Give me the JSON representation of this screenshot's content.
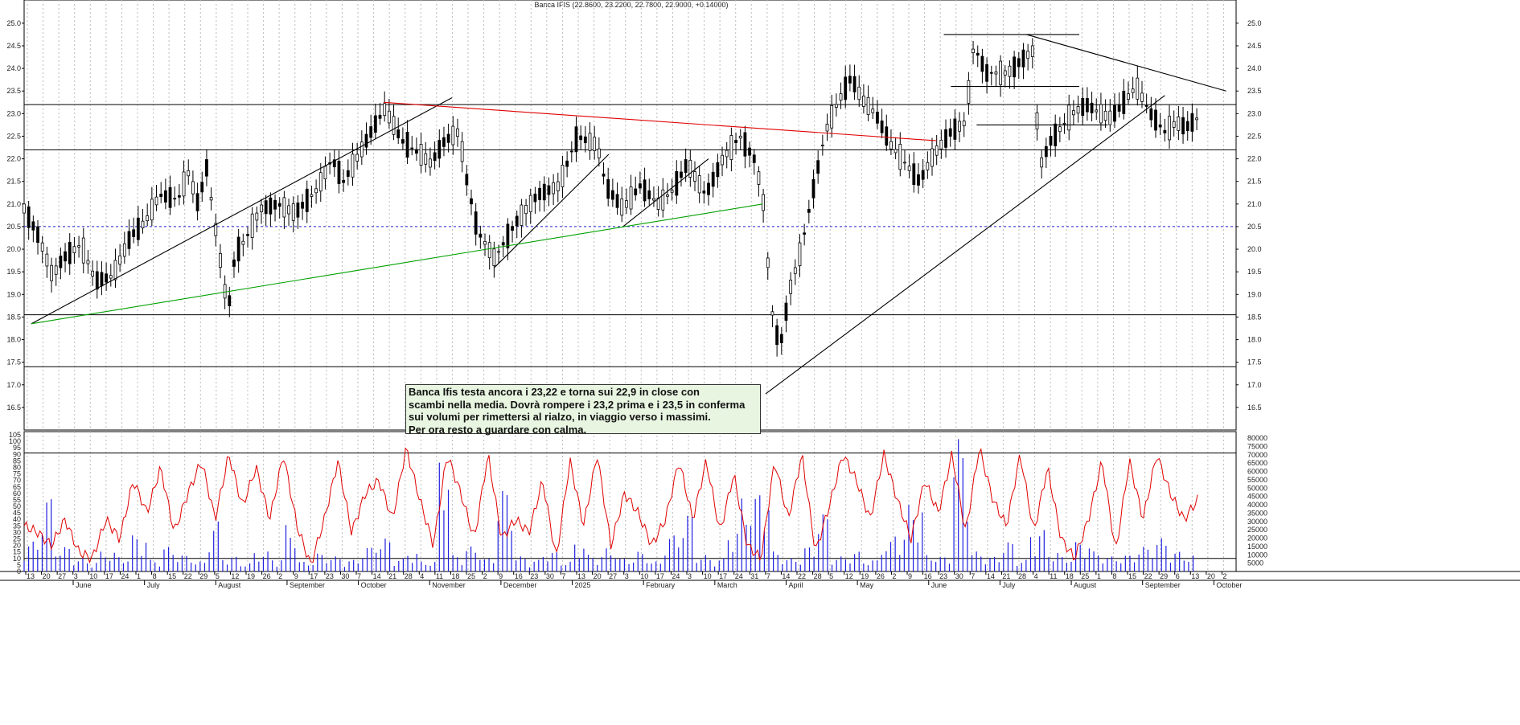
{
  "chart_data": [
    {
      "type": "candlestick",
      "title": "Banca IFIS (22.8600, 23.2200, 22.7800, 22.9000, +0.14000)",
      "ylim": [
        16.0,
        25.3
      ],
      "y_ticks": [
        "25.0",
        "24.5",
        "24.0",
        "23.5",
        "23.0",
        "22.5",
        "22.0",
        "21.5",
        "21.0",
        "20.5",
        "20.0",
        "19.5",
        "19.0",
        "18.5",
        "18.0",
        "17.5",
        "17.0",
        "16.5"
      ],
      "grid": "vertical dotted",
      "horizontal_levels": [
        23.2,
        22.2,
        18.55,
        17.4
      ],
      "dotted_level": 20.5,
      "x_day_labels": [
        "13",
        "20",
        "27",
        "3",
        "10",
        "17",
        "24",
        "1",
        "8",
        "15",
        "22",
        "29",
        "5",
        "12",
        "19",
        "26",
        "2",
        "9",
        "17",
        "23",
        "30",
        "7",
        "14",
        "21",
        "28",
        "4",
        "11",
        "18",
        "25",
        "2",
        "9",
        "16",
        "23",
        "30",
        "7",
        "13",
        "20",
        "27",
        "3",
        "10",
        "17",
        "24",
        "3",
        "10",
        "17",
        "24",
        "31",
        "7",
        "14",
        "22",
        "28",
        "5",
        "12",
        "19",
        "26",
        "2",
        "9",
        "16",
        "23",
        "30",
        "7",
        "14",
        "21",
        "28",
        "4",
        "11",
        "18",
        "25",
        "1",
        "8",
        "15",
        "22",
        "29",
        "6",
        "13",
        "20",
        "2"
      ],
      "x_month_labels": [
        "June",
        "July",
        "August",
        "September",
        "October",
        "November",
        "December",
        "2025",
        "February",
        "March",
        "April",
        "May",
        "June",
        "July",
        "August",
        "September",
        "October"
      ],
      "price_path": [
        [
          0,
          20.9
        ],
        [
          10,
          20.3
        ],
        [
          20,
          19.4
        ],
        [
          27,
          19.8
        ],
        [
          40,
          20.1
        ],
        [
          50,
          19.3
        ],
        [
          62,
          19.4
        ],
        [
          75,
          20.3
        ],
        [
          85,
          20.6
        ],
        [
          95,
          21.2
        ],
        [
          108,
          21.1
        ],
        [
          115,
          21.7
        ],
        [
          122,
          21.0
        ],
        [
          128,
          21.8
        ],
        [
          143,
          18.6
        ],
        [
          148,
          19.9
        ],
        [
          155,
          20.2
        ],
        [
          166,
          20.9
        ],
        [
          178,
          21.0
        ],
        [
          190,
          20.8
        ],
        [
          205,
          21.3
        ],
        [
          216,
          22.0
        ],
        [
          224,
          21.5
        ],
        [
          235,
          22.1
        ],
        [
          245,
          22.7
        ],
        [
          253,
          23.1
        ],
        [
          265,
          22.4
        ],
        [
          278,
          22.1
        ],
        [
          285,
          21.9
        ],
        [
          295,
          22.4
        ],
        [
          305,
          22.6
        ],
        [
          310,
          21.6
        ],
        [
          318,
          20.4
        ],
        [
          330,
          19.8
        ],
        [
          345,
          20.6
        ],
        [
          360,
          21.2
        ],
        [
          375,
          21.4
        ],
        [
          388,
          22.5
        ],
        [
          402,
          22.3
        ],
        [
          408,
          21.4
        ],
        [
          420,
          20.9
        ],
        [
          432,
          21.4
        ],
        [
          445,
          21.0
        ],
        [
          455,
          21.3
        ],
        [
          465,
          21.9
        ],
        [
          478,
          21.2
        ],
        [
          490,
          22.0
        ],
        [
          502,
          22.5
        ],
        [
          512,
          22.0
        ],
        [
          518,
          21.2
        ],
        [
          524,
          18.7
        ],
        [
          530,
          17.8
        ],
        [
          537,
          19.1
        ],
        [
          545,
          20.0
        ],
        [
          552,
          21.1
        ],
        [
          562,
          22.6
        ],
        [
          570,
          23.2
        ],
        [
          580,
          23.8
        ],
        [
          588,
          23.3
        ],
        [
          597,
          23.0
        ],
        [
          608,
          22.3
        ],
        [
          618,
          21.9
        ],
        [
          628,
          21.5
        ],
        [
          638,
          22.1
        ],
        [
          650,
          22.6
        ],
        [
          660,
          22.8
        ],
        [
          666,
          24.5
        ],
        [
          675,
          23.9
        ],
        [
          690,
          23.9
        ],
        [
          700,
          24.2
        ],
        [
          708,
          24.4
        ],
        [
          712,
          21.8
        ],
        [
          720,
          22.4
        ],
        [
          735,
          23.0
        ],
        [
          745,
          23.2
        ],
        [
          755,
          23.0
        ],
        [
          762,
          22.9
        ],
        [
          770,
          23.2
        ],
        [
          780,
          23.6
        ],
        [
          790,
          23.0
        ],
        [
          800,
          22.6
        ],
        [
          808,
          22.8
        ],
        [
          815,
          22.7
        ],
        [
          823,
          22.9
        ]
      ],
      "trend_lines": [
        {
          "color": "#000000",
          "from": [
            5,
            18.35
          ],
          "to": [
            300,
            23.35
          ]
        },
        {
          "color": "#000000",
          "from": [
            330,
            19.6
          ],
          "to": [
            410,
            22.1
          ]
        },
        {
          "color": "#000000",
          "from": [
            420,
            20.5
          ],
          "to": [
            480,
            22.0
          ]
        },
        {
          "color": "#00a000",
          "from": [
            5,
            18.35
          ],
          "to": [
            518,
            21.0
          ]
        },
        {
          "color": "#e00000",
          "from": [
            252,
            23.25
          ],
          "to": [
            640,
            22.4
          ]
        },
        {
          "color": "#000000",
          "from": [
            520,
            16.8
          ],
          "to": [
            800,
            23.4
          ]
        },
        {
          "color": "#000000",
          "from": [
            703,
            24.75
          ],
          "to": [
            843,
            23.5
          ]
        },
        {
          "color": "#000000",
          "from": [
            645,
            24.75
          ],
          "to": [
            740,
            24.75
          ]
        },
        {
          "color": "#000000",
          "from": [
            650,
            23.6
          ],
          "to": [
            740,
            23.6
          ]
        },
        {
          "color": "#000000",
          "from": [
            668,
            22.75
          ],
          "to": [
            760,
            22.75
          ]
        }
      ]
    },
    {
      "type": "line+bar",
      "y_left_ticks": [
        "105",
        "100",
        "95",
        "90",
        "85",
        "80",
        "75",
        "70",
        "65",
        "60",
        "55",
        "50",
        "45",
        "40",
        "35",
        "30",
        "25",
        "20",
        "15",
        "10",
        "5",
        "0"
      ],
      "y_right_ticks": [
        "80000",
        "75000",
        "70000",
        "65000",
        "60000",
        "55000",
        "50000",
        "45000",
        "40000",
        "35000",
        "30000",
        "25000",
        "20000",
        "15000",
        "10000",
        "5000"
      ],
      "ylim": [
        0,
        105
      ],
      "volume_ylim": [
        0,
        82000
      ],
      "horizontal_levels": [
        91,
        10
      ],
      "series": [
        {
          "kind": "line",
          "color": "#e00000",
          "values": [
            35,
            30,
            20,
            40,
            15,
            10,
            40,
            25,
            70,
            45,
            80,
            30,
            60,
            85,
            40,
            90,
            50,
            80,
            40,
            90,
            35,
            5,
            40,
            85,
            30,
            60,
            70,
            40,
            95,
            55,
            20,
            90,
            60,
            25,
            90,
            25,
            40,
            30,
            70,
            10,
            85,
            35,
            90,
            20,
            60,
            45,
            20,
            40,
            85,
            40,
            85,
            30,
            75,
            20,
            10,
            85,
            40,
            90,
            15,
            50,
            90,
            70,
            40,
            90,
            55,
            25,
            70,
            45,
            90,
            30,
            95,
            55,
            35,
            90,
            30,
            80,
            25,
            10,
            40,
            85,
            15,
            85,
            40,
            90,
            60,
            40,
            55
          ]
        },
        {
          "kind": "bar",
          "color": "#2020e0",
          "values": [
            18000,
            45000,
            15000,
            8000,
            6000,
            12000,
            9000,
            22000,
            7000,
            15000,
            10000,
            6000,
            30000,
            9000,
            5000,
            12000,
            8000,
            28000,
            6000,
            11000,
            9000,
            7000,
            15000,
            20000,
            8000,
            12000,
            6000,
            70000,
            10000,
            15000,
            8000,
            50000,
            9000,
            7000,
            12000,
            6000,
            18000,
            10000,
            14000,
            8000,
            12000,
            6000,
            22000,
            35000,
            10000,
            8000,
            25000,
            45000,
            50000,
            12000,
            8000,
            15000,
            35000,
            9000,
            12000,
            7000,
            18000,
            24000,
            40000,
            10000,
            9000,
            80000,
            12000,
            9000,
            18000,
            7000,
            25000,
            12000,
            9000,
            18000,
            12000,
            9000,
            10000,
            15000,
            20000,
            12000,
            10000
          ]
        }
      ]
    }
  ],
  "annotation": {
    "lines": [
      "Banca Ifis testa ancora  i 23,22 e torna sui 22,9 in close con",
      "scambi nella media. Dovrà rompere i 23,2 prima e i 23,5 in conferma",
      "sui volumi per rimettersi al rialzo, in viaggio verso i massimi.",
      "Per ora resto a guardare con calma."
    ]
  }
}
